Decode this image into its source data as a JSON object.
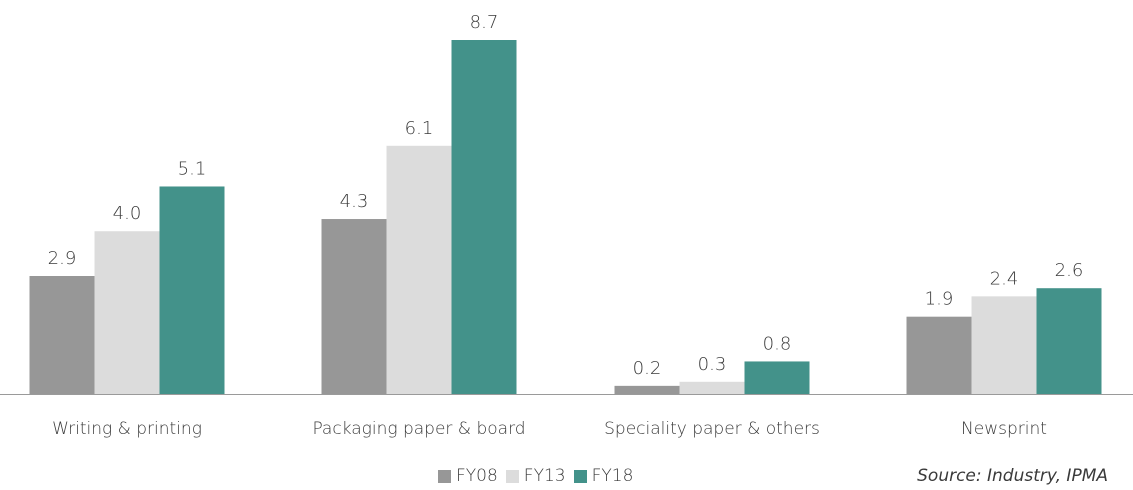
{
  "chart_data": {
    "type": "bar",
    "categories": [
      "Writing & printing",
      "Packaging paper & board",
      "Speciality paper & others",
      "Newsprint"
    ],
    "series": [
      {
        "name": "FY08",
        "values": [
          2.9,
          4.3,
          0.2,
          1.9
        ],
        "color": "#979797"
      },
      {
        "name": "FY13",
        "values": [
          4.0,
          6.1,
          0.3,
          2.4
        ],
        "color": "#dcdcdc"
      },
      {
        "name": "FY18",
        "values": [
          5.1,
          8.7,
          0.8,
          2.6
        ],
        "color": "#43928a"
      }
    ],
    "ylim": [
      0,
      8.7
    ],
    "grid": false,
    "legend": "bottom-center",
    "data_labels": true,
    "title": "",
    "xlabel": "",
    "ylabel": ""
  },
  "source": "Source: Industry, IPMA",
  "colors": {
    "axis": "#9a9a9a",
    "label_text": "#3a3a3a"
  }
}
